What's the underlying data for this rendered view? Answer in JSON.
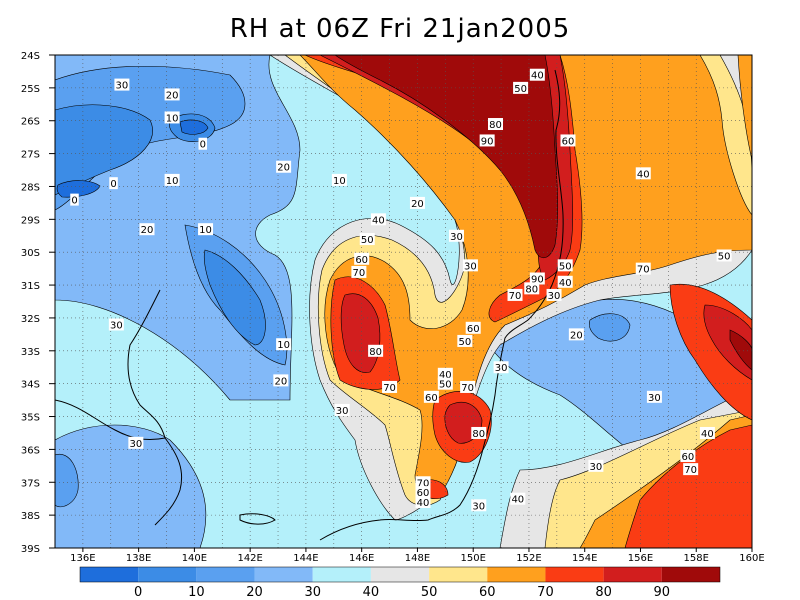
{
  "title": "RH at 06Z Fri 21jan2005",
  "map": {
    "variable": "RH",
    "extent": {
      "lon": [
        135,
        160
      ],
      "lat": [
        -39,
        -24
      ]
    },
    "lat_ticks": [
      "24S",
      "25S",
      "26S",
      "27S",
      "28S",
      "29S",
      "30S",
      "31S",
      "32S",
      "33S",
      "34S",
      "35S",
      "36S",
      "37S",
      "38S",
      "39S"
    ],
    "lon_ticks": [
      "136E",
      "138E",
      "140E",
      "142E",
      "144E",
      "146E",
      "148E",
      "150E",
      "152E",
      "154E",
      "156E",
      "158E",
      "160E"
    ],
    "grid": "dotted",
    "contour_labels": [
      {
        "text": "30",
        "lon": 137.4,
        "lat": -24.9
      },
      {
        "text": "20",
        "lon": 139.2,
        "lat": -25.2
      },
      {
        "text": "10",
        "lon": 139.2,
        "lat": -25.9
      },
      {
        "text": "0",
        "lon": 140.3,
        "lat": -26.7
      },
      {
        "text": "0",
        "lon": 137.1,
        "lat": -27.9
      },
      {
        "text": "0",
        "lon": 135.7,
        "lat": -28.4
      },
      {
        "text": "10",
        "lon": 139.2,
        "lat": -27.8
      },
      {
        "text": "20",
        "lon": 143.2,
        "lat": -27.4
      },
      {
        "text": "10",
        "lon": 145.2,
        "lat": -27.8
      },
      {
        "text": "20",
        "lon": 138.3,
        "lat": -29.3
      },
      {
        "text": "10",
        "lon": 140.4,
        "lat": -29.3
      },
      {
        "text": "20",
        "lon": 148.0,
        "lat": -28.5
      },
      {
        "text": "40",
        "lon": 146.6,
        "lat": -29.0
      },
      {
        "text": "50",
        "lon": 146.2,
        "lat": -29.6
      },
      {
        "text": "30",
        "lon": 149.4,
        "lat": -29.5
      },
      {
        "text": "60",
        "lon": 146.0,
        "lat": -30.2
      },
      {
        "text": "70",
        "lon": 145.9,
        "lat": -30.6
      },
      {
        "text": "30",
        "lon": 149.9,
        "lat": -30.4
      },
      {
        "text": "30",
        "lon": 137.2,
        "lat": -32.2
      },
      {
        "text": "80",
        "lon": 146.5,
        "lat": -33.0
      },
      {
        "text": "10",
        "lon": 143.2,
        "lat": -32.8
      },
      {
        "text": "20",
        "lon": 143.1,
        "lat": -33.9
      },
      {
        "text": "70",
        "lon": 147.0,
        "lat": -34.1
      },
      {
        "text": "30",
        "lon": 145.3,
        "lat": -34.8
      },
      {
        "text": "40",
        "lon": 149.0,
        "lat": -33.7
      },
      {
        "text": "50",
        "lon": 149.0,
        "lat": -34.0
      },
      {
        "text": "60",
        "lon": 148.5,
        "lat": -34.4
      },
      {
        "text": "70",
        "lon": 149.8,
        "lat": -34.1
      },
      {
        "text": "80",
        "lon": 150.2,
        "lat": -35.5
      },
      {
        "text": "30",
        "lon": 137.9,
        "lat": -35.8
      },
      {
        "text": "70",
        "lon": 148.2,
        "lat": -37.0
      },
      {
        "text": "60",
        "lon": 148.2,
        "lat": -37.3
      },
      {
        "text": "40",
        "lon": 148.2,
        "lat": -37.6
      },
      {
        "text": "30",
        "lon": 150.2,
        "lat": -37.7
      },
      {
        "text": "40",
        "lon": 152.3,
        "lat": -24.6
      },
      {
        "text": "50",
        "lon": 151.7,
        "lat": -25.0
      },
      {
        "text": "80",
        "lon": 150.8,
        "lat": -26.1
      },
      {
        "text": "90",
        "lon": 150.5,
        "lat": -26.6
      },
      {
        "text": "60",
        "lon": 153.4,
        "lat": -26.6
      },
      {
        "text": "40",
        "lon": 156.1,
        "lat": -27.6
      },
      {
        "text": "50",
        "lon": 153.3,
        "lat": -30.4
      },
      {
        "text": "40",
        "lon": 153.3,
        "lat": -30.9
      },
      {
        "text": "90",
        "lon": 152.3,
        "lat": -30.8
      },
      {
        "text": "80",
        "lon": 152.1,
        "lat": -31.1
      },
      {
        "text": "70",
        "lon": 151.5,
        "lat": -31.3
      },
      {
        "text": "30",
        "lon": 152.9,
        "lat": -31.3
      },
      {
        "text": "60",
        "lon": 150.0,
        "lat": -32.3
      },
      {
        "text": "50",
        "lon": 149.7,
        "lat": -32.7
      },
      {
        "text": "70",
        "lon": 156.1,
        "lat": -30.5
      },
      {
        "text": "50",
        "lon": 159.0,
        "lat": -30.1
      },
      {
        "text": "20",
        "lon": 153.7,
        "lat": -32.5
      },
      {
        "text": "30",
        "lon": 151.0,
        "lat": -33.5
      },
      {
        "text": "30",
        "lon": 156.5,
        "lat": -34.4
      },
      {
        "text": "40",
        "lon": 158.4,
        "lat": -35.5
      },
      {
        "text": "60",
        "lon": 157.7,
        "lat": -36.2
      },
      {
        "text": "70",
        "lon": 157.8,
        "lat": -36.6
      },
      {
        "text": "30",
        "lon": 154.4,
        "lat": -36.5
      },
      {
        "text": "40",
        "lon": 151.6,
        "lat": -37.5
      }
    ]
  },
  "colorbar": {
    "ticks": [
      "0",
      "10",
      "20",
      "30",
      "40",
      "50",
      "60",
      "70",
      "80",
      "90"
    ],
    "levels": [
      {
        "label": "<0",
        "color": "#1e6edc"
      },
      {
        "label": "0-10",
        "color": "#3c8ce6"
      },
      {
        "label": "10-20",
        "color": "#5aa0f0"
      },
      {
        "label": "20-30",
        "color": "#82b9f8"
      },
      {
        "label": "30-40",
        "color": "#b4f0fa"
      },
      {
        "label": "40-50",
        "color": "#e6e6e6"
      },
      {
        "label": "50-60",
        "color": "#ffe68c"
      },
      {
        "label": "60-70",
        "color": "#ffa01e"
      },
      {
        "label": "70-80",
        "color": "#fa3c14"
      },
      {
        "label": "80-90",
        "color": "#d21e1e"
      },
      {
        "label": ">90",
        "color": "#a00a0a"
      }
    ]
  }
}
